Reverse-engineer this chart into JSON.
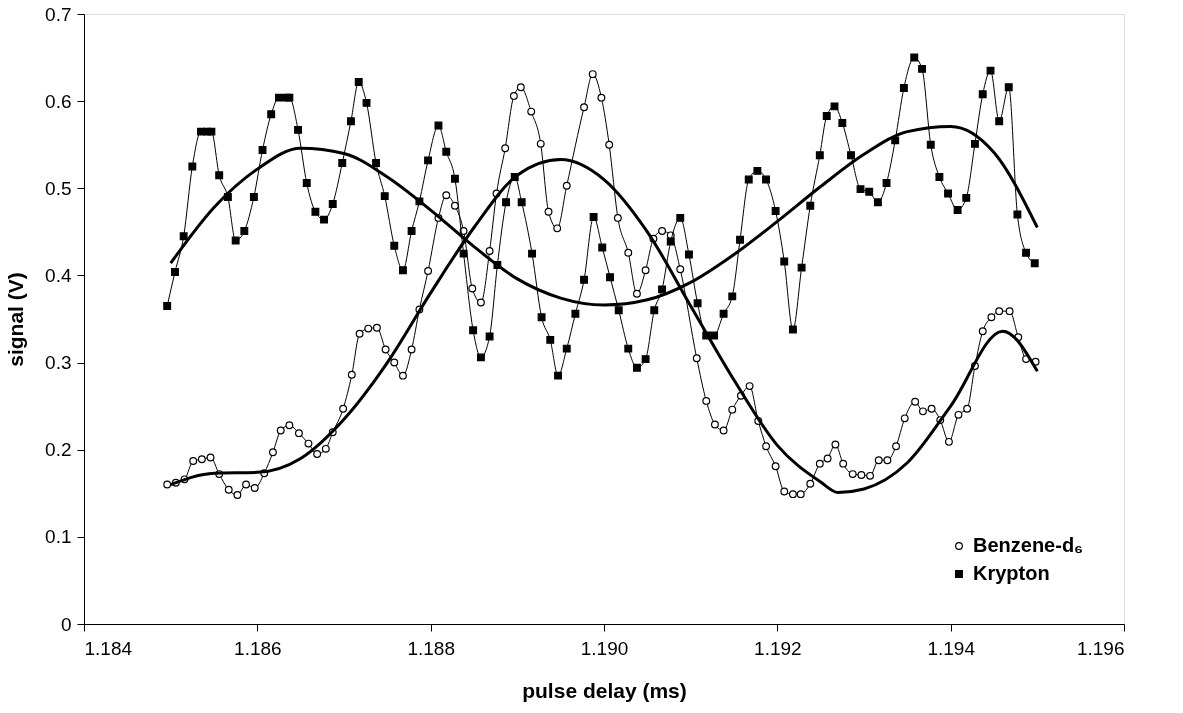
{
  "chart_data": {
    "type": "line",
    "xlabel": "pulse delay (ms)",
    "ylabel": "signal (V)",
    "xlim": [
      1.184,
      1.196
    ],
    "xticks": [
      1.184,
      1.186,
      1.188,
      {
        "value": 1.19,
        "label": "1.190"
      },
      1.192,
      1.194,
      1.196
    ],
    "ylim": [
      0,
      0.7
    ],
    "yticks": [
      0,
      0.1,
      0.2,
      0.3,
      0.4,
      0.5,
      0.6,
      0.7
    ],
    "legend": "bottom right",
    "line_style": "solid",
    "series": [
      {
        "name": "Benzene-d₆",
        "color": "#000000",
        "marker": "circle",
        "x": [
          1.18496,
          1.18506,
          1.18516,
          1.18526,
          1.18536,
          1.18546,
          1.18556,
          1.18567,
          1.18577,
          1.18587,
          1.18597,
          1.18608,
          1.18618,
          1.18627,
          1.18637,
          1.18648,
          1.18659,
          1.18669,
          1.18679,
          1.18687,
          1.18699,
          1.18709,
          1.18718,
          1.18728,
          1.18738,
          1.18748,
          1.18758,
          1.18768,
          1.18778,
          1.18787,
          1.18797,
          1.18809,
          1.18818,
          1.18828,
          1.18838,
          1.18848,
          1.18858,
          1.18868,
          1.18876,
          1.18886,
          1.18896,
          1.18904,
          1.18916,
          1.18927,
          1.18936,
          1.18946,
          1.18957,
          1.18977,
          1.18987,
          1.18997,
          1.19006,
          1.19016,
          1.19028,
          1.19038,
          1.19048,
          1.19057,
          1.19067,
          1.19077,
          1.19088,
          1.19107,
          1.19118,
          1.19128,
          1.19138,
          1.19148,
          1.19158,
          1.19168,
          1.19178,
          1.19187,
          1.19198,
          1.19208,
          1.19218,
          1.19227,
          1.19238,
          1.19249,
          1.19258,
          1.19267,
          1.19276,
          1.19287,
          1.19297,
          1.19307,
          1.19317,
          1.19327,
          1.19337,
          1.19347,
          1.19359,
          1.19368,
          1.19378,
          1.19388,
          1.19398,
          1.19409,
          1.19419,
          1.19428,
          1.19437,
          1.19447,
          1.19456,
          1.19468,
          1.19478,
          1.19487,
          1.19498
        ],
        "values": [
          0.16,
          0.162,
          0.166,
          0.187,
          0.189,
          0.191,
          0.172,
          0.154,
          0.148,
          0.16,
          0.156,
          0.173,
          0.197,
          0.222,
          0.228,
          0.219,
          0.207,
          0.195,
          0.201,
          0.22,
          0.247,
          0.286,
          0.333,
          0.339,
          0.34,
          0.315,
          0.3,
          0.285,
          0.315,
          0.361,
          0.405,
          0.466,
          0.492,
          0.48,
          0.451,
          0.385,
          0.369,
          0.428,
          0.494,
          0.546,
          0.606,
          0.616,
          0.588,
          0.551,
          0.473,
          0.454,
          0.503,
          0.593,
          0.631,
          0.604,
          0.55,
          0.466,
          0.426,
          0.379,
          0.406,
          0.442,
          0.451,
          0.446,
          0.407,
          0.305,
          0.256,
          0.229,
          0.222,
          0.246,
          0.262,
          0.273,
          0.233,
          0.204,
          0.181,
          0.152,
          0.149,
          0.149,
          0.161,
          0.184,
          0.19,
          0.206,
          0.184,
          0.172,
          0.171,
          0.17,
          0.188,
          0.188,
          0.204,
          0.236,
          0.255,
          0.244,
          0.247,
          0.234,
          0.209,
          0.24,
          0.247,
          0.296,
          0.336,
          0.352,
          0.359,
          0.359,
          0.329,
          0.304,
          0.301
        ]
      },
      {
        "name": "Krypton",
        "color": "#000000",
        "marker": "square",
        "x": [
          1.18496,
          1.18505,
          1.18515,
          1.18525,
          1.18535,
          1.18542,
          1.18547,
          1.18556,
          1.18566,
          1.18575,
          1.18585,
          1.18596,
          1.18606,
          1.18616,
          1.18625,
          1.18634,
          1.18637,
          1.18647,
          1.18657,
          1.18667,
          1.18677,
          1.18687,
          1.18698,
          1.18708,
          1.18717,
          1.18726,
          1.18737,
          1.18747,
          1.18758,
          1.18768,
          1.18778,
          1.18787,
          1.18797,
          1.18809,
          1.18818,
          1.18828,
          1.18838,
          1.18849,
          1.18858,
          1.18868,
          1.18877,
          1.18887,
          1.18897,
          1.18905,
          1.18917,
          1.18928,
          1.18938,
          1.18947,
          1.18957,
          1.18967,
          1.18977,
          1.18988,
          1.18998,
          1.19007,
          1.19017,
          1.19028,
          1.19038,
          1.19048,
          1.19058,
          1.19067,
          1.19077,
          1.19088,
          1.19098,
          1.19108,
          1.19118,
          1.19127,
          1.19138,
          1.19148,
          1.19157,
          1.19167,
          1.19177,
          1.19187,
          1.19198,
          1.19208,
          1.19218,
          1.19228,
          1.19238,
          1.19249,
          1.19257,
          1.19266,
          1.19275,
          1.19285,
          1.19296,
          1.19306,
          1.19316,
          1.19326,
          1.19336,
          1.19346,
          1.19358,
          1.19367,
          1.19377,
          1.19387,
          1.19397,
          1.19408,
          1.19418,
          1.19428,
          1.19437,
          1.19446,
          1.19456,
          1.19467,
          1.19477,
          1.19487,
          1.19497
        ],
        "values": [
          0.365,
          0.404,
          0.445,
          0.525,
          0.565,
          0.565,
          0.565,
          0.515,
          0.49,
          0.44,
          0.451,
          0.49,
          0.544,
          0.585,
          0.604,
          0.604,
          0.604,
          0.567,
          0.506,
          0.473,
          0.464,
          0.482,
          0.529,
          0.577,
          0.622,
          0.598,
          0.529,
          0.491,
          0.434,
          0.406,
          0.451,
          0.485,
          0.532,
          0.572,
          0.542,
          0.511,
          0.425,
          0.337,
          0.306,
          0.33,
          0.412,
          0.484,
          0.513,
          0.484,
          0.425,
          0.352,
          0.326,
          0.285,
          0.316,
          0.356,
          0.395,
          0.467,
          0.432,
          0.398,
          0.36,
          0.316,
          0.294,
          0.304,
          0.36,
          0.384,
          0.439,
          0.466,
          0.424,
          0.368,
          0.331,
          0.331,
          0.356,
          0.376,
          0.441,
          0.51,
          0.52,
          0.51,
          0.474,
          0.416,
          0.338,
          0.409,
          0.48,
          0.538,
          0.583,
          0.594,
          0.575,
          0.538,
          0.499,
          0.496,
          0.484,
          0.506,
          0.555,
          0.615,
          0.65,
          0.637,
          0.55,
          0.513,
          0.494,
          0.475,
          0.489,
          0.551,
          0.608,
          0.635,
          0.577,
          0.616,
          0.47,
          0.426,
          0.414
        ]
      },
      {
        "type": "line",
        "color": "#000000",
        "marker": "none",
        "x": [
          1.185,
          1.1855,
          1.186,
          1.1865,
          1.187,
          1.1875,
          1.188,
          1.1885,
          1.189,
          1.1895,
          1.19,
          1.1905,
          1.191,
          1.1915,
          1.192,
          1.1925,
          1.1927,
          1.193,
          1.1935,
          1.194,
          1.1946,
          1.195
        ],
        "values": [
          0.16,
          0.173,
          0.174,
          0.19,
          0.235,
          0.3,
          0.38,
          0.455,
          0.515,
          0.533,
          0.51,
          0.45,
          0.365,
          0.28,
          0.205,
          0.163,
          0.151,
          0.155,
          0.185,
          0.25,
          0.336,
          0.29
        ]
      },
      {
        "type": "line",
        "color": "#000000",
        "marker": "none",
        "x": [
          1.185,
          1.1855,
          1.186,
          1.1865,
          1.187,
          1.1875,
          1.188,
          1.1885,
          1.189,
          1.1895,
          1.19,
          1.1905,
          1.191,
          1.1915,
          1.192,
          1.1925,
          1.193,
          1.1935,
          1.194,
          1.1945,
          1.195
        ],
        "values": [
          0.414,
          0.478,
          0.522,
          0.546,
          0.54,
          0.513,
          0.475,
          0.433,
          0.396,
          0.374,
          0.366,
          0.372,
          0.392,
          0.424,
          0.462,
          0.502,
          0.539,
          0.565,
          0.571,
          0.541,
          0.455
        ]
      }
    ]
  }
}
